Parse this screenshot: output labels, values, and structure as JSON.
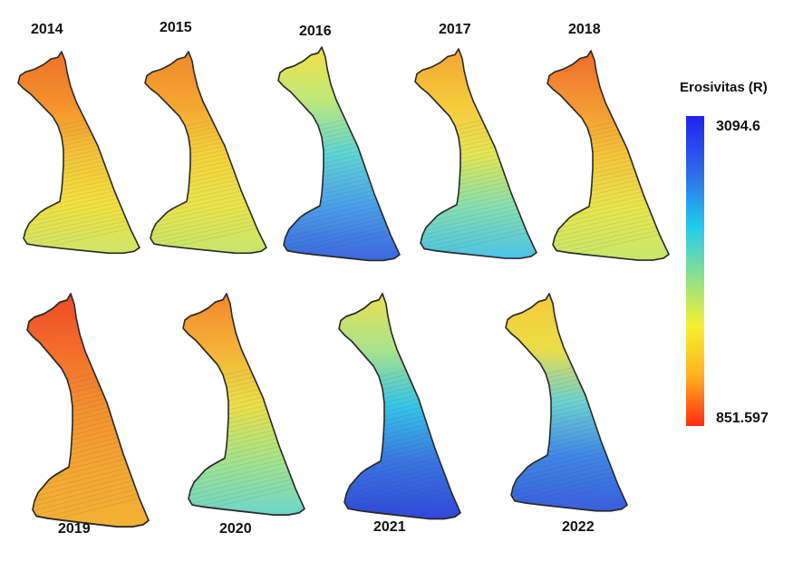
{
  "legend": {
    "title": "Erosivitas (R)",
    "max_label": "3094.6",
    "min_label": "851.597",
    "max_value": 3094.6,
    "min_value": 851.597,
    "ramp_colors": [
      "#2222ee",
      "#2e6ae8",
      "#22ccee",
      "#8fe08c",
      "#f6f030",
      "#ffb020",
      "#ff2a10"
    ]
  },
  "maps": [
    {
      "year": "2014",
      "colors": [
        "#f0702a",
        "#f3902a",
        "#f5c23a",
        "#f2e13f",
        "#cde66a"
      ]
    },
    {
      "year": "2015",
      "colors": [
        "#f3872c",
        "#f4a431",
        "#f5d13c",
        "#eae54a",
        "#c7e56d"
      ]
    },
    {
      "year": "2016",
      "colors": [
        "#f0e244",
        "#bfe77a",
        "#5fd6d4",
        "#4a9ee8",
        "#3d66de"
      ]
    },
    {
      "year": "2017",
      "colors": [
        "#f3a532",
        "#f6c83b",
        "#e6e653",
        "#86e0b0",
        "#4cc2e6"
      ]
    },
    {
      "year": "2018",
      "colors": [
        "#f06c2c",
        "#f39631",
        "#f5c53b",
        "#e8e64e",
        "#c8e66c"
      ]
    },
    {
      "year": "2019",
      "colors": [
        "#ef4a2a",
        "#f36e2c",
        "#f4922f",
        "#f4a733",
        "#f3b236"
      ]
    },
    {
      "year": "2020",
      "colors": [
        "#f3862d",
        "#f4b235",
        "#ebe04a",
        "#a6e38b",
        "#6cd6c9"
      ]
    },
    {
      "year": "2021",
      "colors": [
        "#e9e050",
        "#a9e28d",
        "#36c4e8",
        "#3a74e2",
        "#3148d8"
      ]
    },
    {
      "year": "2022",
      "colors": [
        "#f4c83a",
        "#ecdd48",
        "#6cd2d2",
        "#3f86e6",
        "#3a5ede"
      ]
    }
  ]
}
